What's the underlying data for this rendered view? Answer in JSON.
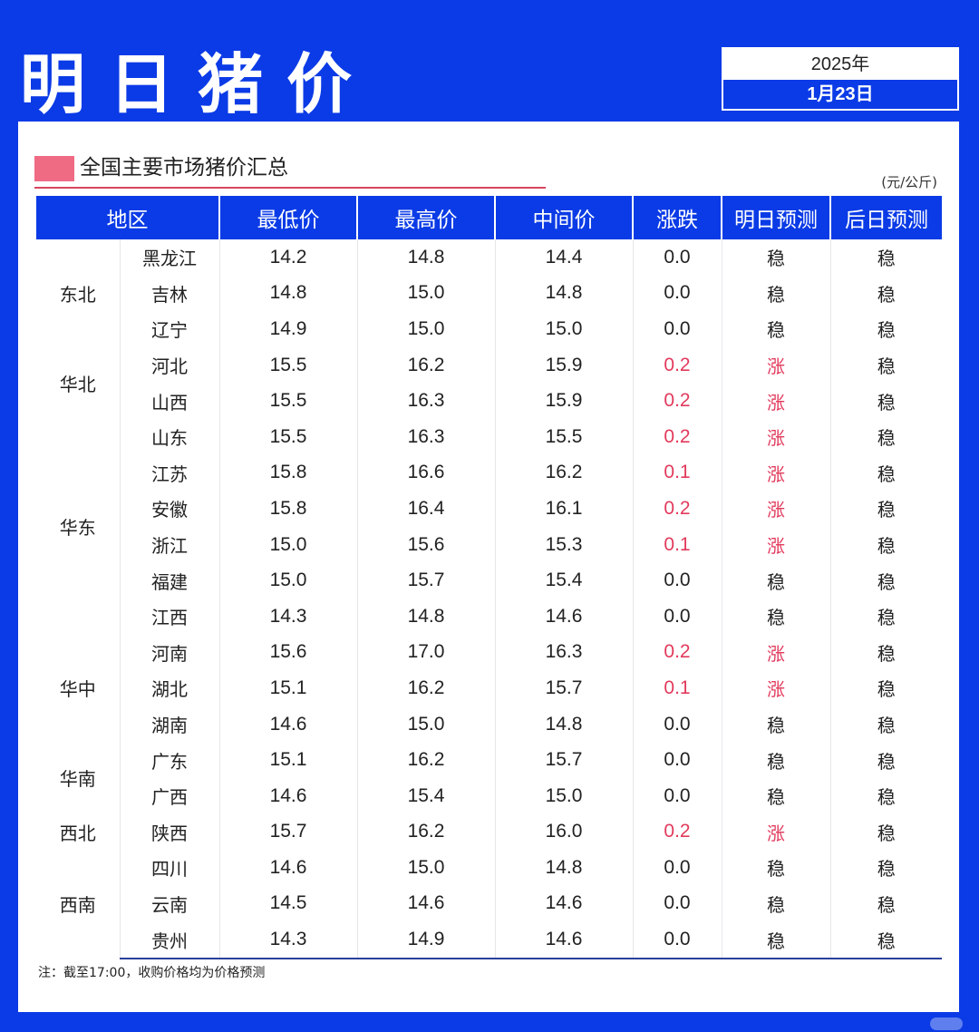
{
  "header": {
    "title": "明日猪价",
    "year": "2025年",
    "date": "1月23日"
  },
  "section": {
    "title": "全国主要市场猪价汇总",
    "unit": "(元/公斤)"
  },
  "table": {
    "columns": [
      "地区",
      "最低价",
      "最高价",
      "中间价",
      "涨跌",
      "明日预测",
      "后日预测"
    ],
    "regions": [
      {
        "name": "东北",
        "rows": 3
      },
      {
        "name": "华北",
        "rows": 2
      },
      {
        "name": "华东",
        "rows": 6
      },
      {
        "name": "华中",
        "rows": 3
      },
      {
        "name": "华南",
        "rows": 2
      },
      {
        "name": "西北",
        "rows": 1
      },
      {
        "name": "西南",
        "rows": 3
      }
    ],
    "rows": [
      {
        "province": "黑龙江",
        "low": "14.2",
        "high": "14.8",
        "mid": "14.4",
        "change": "0.0",
        "tomorrow": "稳",
        "after": "稳"
      },
      {
        "province": "吉林",
        "low": "14.8",
        "high": "15.0",
        "mid": "14.8",
        "change": "0.0",
        "tomorrow": "稳",
        "after": "稳"
      },
      {
        "province": "辽宁",
        "low": "14.9",
        "high": "15.0",
        "mid": "15.0",
        "change": "0.0",
        "tomorrow": "稳",
        "after": "稳"
      },
      {
        "province": "河北",
        "low": "15.5",
        "high": "16.2",
        "mid": "15.9",
        "change": "0.2",
        "tomorrow": "涨",
        "after": "稳"
      },
      {
        "province": "山西",
        "low": "15.5",
        "high": "16.3",
        "mid": "15.9",
        "change": "0.2",
        "tomorrow": "涨",
        "after": "稳"
      },
      {
        "province": "山东",
        "low": "15.5",
        "high": "16.3",
        "mid": "15.5",
        "change": "0.2",
        "tomorrow": "涨",
        "after": "稳"
      },
      {
        "province": "江苏",
        "low": "15.8",
        "high": "16.6",
        "mid": "16.2",
        "change": "0.1",
        "tomorrow": "涨",
        "after": "稳"
      },
      {
        "province": "安徽",
        "low": "15.8",
        "high": "16.4",
        "mid": "16.1",
        "change": "0.2",
        "tomorrow": "涨",
        "after": "稳"
      },
      {
        "province": "浙江",
        "low": "15.0",
        "high": "15.6",
        "mid": "15.3",
        "change": "0.1",
        "tomorrow": "涨",
        "after": "稳"
      },
      {
        "province": "福建",
        "low": "15.0",
        "high": "15.7",
        "mid": "15.4",
        "change": "0.0",
        "tomorrow": "稳",
        "after": "稳"
      },
      {
        "province": "江西",
        "low": "14.3",
        "high": "14.8",
        "mid": "14.6",
        "change": "0.0",
        "tomorrow": "稳",
        "after": "稳"
      },
      {
        "province": "河南",
        "low": "15.6",
        "high": "17.0",
        "mid": "16.3",
        "change": "0.2",
        "tomorrow": "涨",
        "after": "稳"
      },
      {
        "province": "湖北",
        "low": "15.1",
        "high": "16.2",
        "mid": "15.7",
        "change": "0.1",
        "tomorrow": "涨",
        "after": "稳"
      },
      {
        "province": "湖南",
        "low": "14.6",
        "high": "15.0",
        "mid": "14.8",
        "change": "0.0",
        "tomorrow": "稳",
        "after": "稳"
      },
      {
        "province": "广东",
        "low": "15.1",
        "high": "16.2",
        "mid": "15.7",
        "change": "0.0",
        "tomorrow": "稳",
        "after": "稳"
      },
      {
        "province": "广西",
        "low": "14.6",
        "high": "15.4",
        "mid": "15.0",
        "change": "0.0",
        "tomorrow": "稳",
        "after": "稳"
      },
      {
        "province": "陕西",
        "low": "15.7",
        "high": "16.2",
        "mid": "16.0",
        "change": "0.2",
        "tomorrow": "涨",
        "after": "稳"
      },
      {
        "province": "四川",
        "low": "14.6",
        "high": "15.0",
        "mid": "14.8",
        "change": "0.0",
        "tomorrow": "稳",
        "after": "稳"
      },
      {
        "province": "云南",
        "low": "14.5",
        "high": "14.6",
        "mid": "14.6",
        "change": "0.0",
        "tomorrow": "稳",
        "after": "稳"
      },
      {
        "province": "贵州",
        "low": "14.3",
        "high": "14.9",
        "mid": "14.6",
        "change": "0.0",
        "tomorrow": "稳",
        "after": "稳"
      }
    ]
  },
  "footnote": "注：截至17:00，收购价格均为价格预测",
  "colors": {
    "brand_blue": "#0b3be6",
    "rise_red": "#e23a5c",
    "section_mark": "#ef6a83"
  }
}
